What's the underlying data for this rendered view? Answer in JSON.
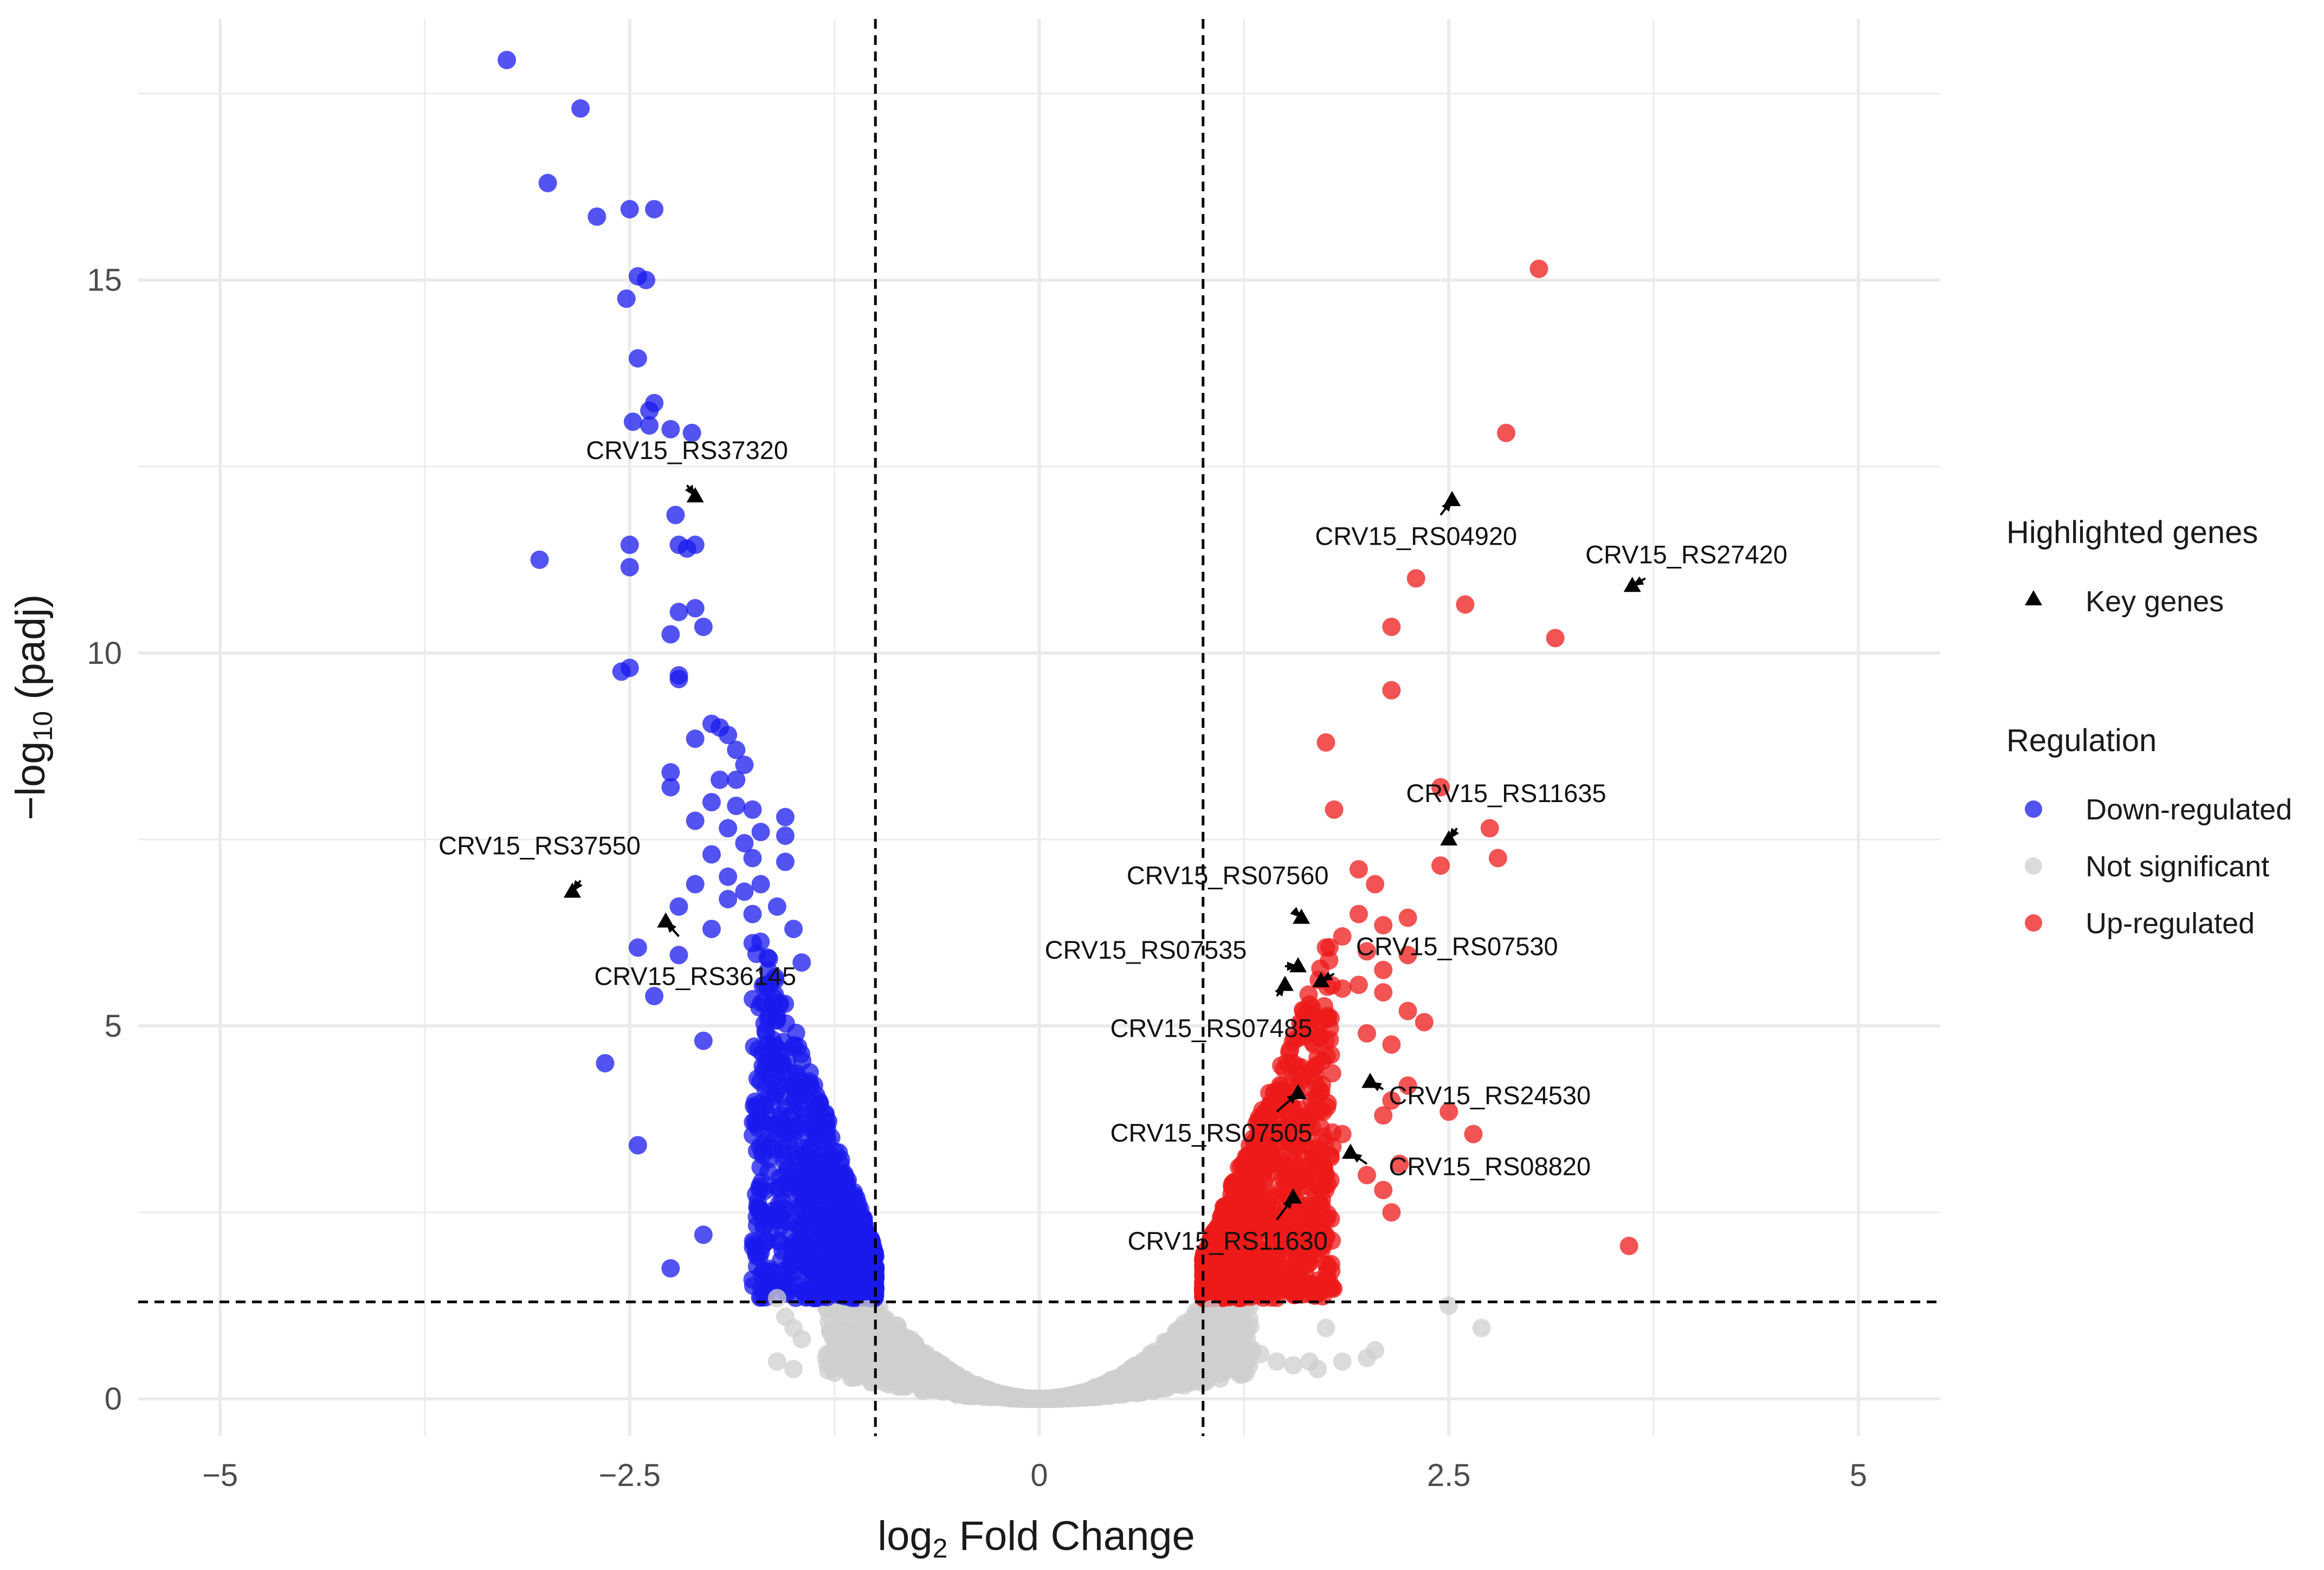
{
  "chart_data": {
    "type": "scatter",
    "subtype": "volcano",
    "title": "",
    "xlabel_base": "log",
    "xlabel_sub": "2",
    "xlabel_rest": " Fold Change",
    "ylabel_base": "−log",
    "ylabel_sub": "10",
    "ylabel_rest": " (padj)",
    "xlim": [
      -5.5,
      5.5
    ],
    "ylim": [
      -0.5,
      18.5
    ],
    "x_ticks": [
      -5,
      -2.5,
      0,
      2.5,
      5
    ],
    "x_tick_labels": [
      "−5",
      "−2.5",
      "0",
      "2.5",
      "5"
    ],
    "y_ticks": [
      0,
      5,
      10,
      15
    ],
    "y_tick_labels": [
      "0",
      "5",
      "10",
      "15"
    ],
    "thresholds": {
      "log2fc": [
        -1,
        1
      ],
      "neg_log10_padj": 1.3
    },
    "colors": {
      "down": "#1a1aee",
      "up": "#ee1a1a",
      "ns": "#cfcfcf",
      "key": "#000000",
      "grid": "#ebebeb",
      "threshold": "#000000"
    },
    "series": [
      {
        "name": "Down-regulated",
        "color": "#1a1aee",
        "points": [
          [
            -3.25,
            17.95
          ],
          [
            -2.8,
            17.3
          ],
          [
            -3.0,
            16.3
          ],
          [
            -2.7,
            15.85
          ],
          [
            -2.5,
            15.95
          ],
          [
            -2.35,
            15.95
          ],
          [
            -2.45,
            15.05
          ],
          [
            -2.4,
            15.0
          ],
          [
            -2.52,
            14.75
          ],
          [
            -2.45,
            13.95
          ],
          [
            -2.35,
            13.35
          ],
          [
            -2.38,
            13.25
          ],
          [
            -2.48,
            13.1
          ],
          [
            -2.38,
            13.05
          ],
          [
            -2.25,
            13.0
          ],
          [
            -2.12,
            12.95
          ],
          [
            -2.22,
            11.85
          ],
          [
            -2.2,
            11.45
          ],
          [
            -2.15,
            11.4
          ],
          [
            -2.1,
            11.45
          ],
          [
            -2.5,
            11.45
          ],
          [
            -3.05,
            11.25
          ],
          [
            -2.5,
            11.15
          ],
          [
            -2.2,
            10.55
          ],
          [
            -2.1,
            10.6
          ],
          [
            -2.05,
            10.35
          ],
          [
            -2.25,
            10.25
          ],
          [
            -2.55,
            9.75
          ],
          [
            -2.5,
            9.8
          ],
          [
            -2.2,
            9.65
          ],
          [
            -2.2,
            9.7
          ],
          [
            -2.0,
            9.05
          ],
          [
            -1.95,
            9.0
          ],
          [
            -1.9,
            8.9
          ],
          [
            -2.1,
            8.85
          ],
          [
            -1.85,
            8.7
          ],
          [
            -1.8,
            8.5
          ],
          [
            -2.25,
            8.4
          ],
          [
            -1.95,
            8.3
          ],
          [
            -1.85,
            8.3
          ],
          [
            -2.25,
            8.2
          ],
          [
            -2.0,
            8.0
          ],
          [
            -1.85,
            7.95
          ],
          [
            -1.75,
            7.9
          ],
          [
            -1.55,
            7.8
          ],
          [
            -2.1,
            7.75
          ],
          [
            -1.9,
            7.65
          ],
          [
            -1.7,
            7.6
          ],
          [
            -1.55,
            7.55
          ],
          [
            -1.8,
            7.45
          ],
          [
            -2.0,
            7.3
          ],
          [
            -1.75,
            7.25
          ],
          [
            -1.55,
            7.2
          ],
          [
            -1.9,
            7.0
          ],
          [
            -2.1,
            6.9
          ],
          [
            -1.7,
            6.9
          ],
          [
            -1.8,
            6.8
          ],
          [
            -1.9,
            6.7
          ],
          [
            -2.2,
            6.6
          ],
          [
            -1.6,
            6.6
          ],
          [
            -1.75,
            6.5
          ],
          [
            -2.0,
            6.3
          ],
          [
            -1.5,
            6.3
          ],
          [
            -2.45,
            6.05
          ],
          [
            -2.2,
            5.95
          ],
          [
            -1.65,
            5.9
          ],
          [
            -1.45,
            5.85
          ],
          [
            -2.35,
            5.4
          ],
          [
            -2.05,
            4.8
          ],
          [
            -2.65,
            4.5
          ],
          [
            -2.45,
            3.4
          ],
          [
            -2.05,
            2.2
          ],
          [
            -2.25,
            1.75
          ],
          [
            -1.75,
            1.6
          ]
        ]
      },
      {
        "name": "Not significant",
        "color": "#cfcfcf",
        "points": [
          [
            -1.6,
            1.35
          ],
          [
            -1.55,
            1.1
          ],
          [
            -1.5,
            0.95
          ],
          [
            -1.45,
            0.8
          ],
          [
            -1.6,
            0.5
          ],
          [
            -1.5,
            0.4
          ],
          [
            -1.3,
            0.55
          ],
          [
            -1.25,
            0.35
          ],
          [
            -1.1,
            0.5
          ],
          [
            -1.0,
            0.9
          ],
          [
            -0.9,
            0.6
          ],
          [
            -0.8,
            0.45
          ],
          [
            -0.7,
            0.35
          ],
          [
            -1.2,
            1.1
          ],
          [
            -1.15,
            0.8
          ],
          [
            -1.05,
            1.2
          ],
          [
            1.05,
            1.2
          ],
          [
            1.15,
            0.9
          ],
          [
            1.25,
            1.05
          ],
          [
            1.35,
            0.6
          ],
          [
            1.45,
            0.5
          ],
          [
            1.55,
            0.45
          ],
          [
            1.65,
            0.5
          ],
          [
            1.7,
            0.4
          ],
          [
            1.75,
            0.95
          ],
          [
            1.2,
            0.5
          ],
          [
            1.1,
            0.75
          ],
          [
            2.5,
            1.25
          ],
          [
            2.7,
            0.95
          ],
          [
            2.05,
            0.65
          ],
          [
            2.0,
            0.55
          ],
          [
            1.85,
            0.5
          ]
        ]
      },
      {
        "name": "Up-regulated",
        "color": "#ee1a1a",
        "points": [
          [
            3.05,
            15.15
          ],
          [
            2.85,
            12.95
          ],
          [
            2.3,
            11.0
          ],
          [
            2.6,
            10.65
          ],
          [
            3.15,
            10.2
          ],
          [
            2.15,
            10.35
          ],
          [
            2.15,
            9.5
          ],
          [
            1.75,
            8.8
          ],
          [
            2.45,
            8.2
          ],
          [
            1.8,
            7.9
          ],
          [
            2.75,
            7.65
          ],
          [
            2.8,
            7.25
          ],
          [
            2.45,
            7.15
          ],
          [
            1.95,
            7.1
          ],
          [
            2.05,
            6.9
          ],
          [
            1.95,
            6.5
          ],
          [
            2.25,
            6.45
          ],
          [
            2.1,
            6.35
          ],
          [
            1.85,
            6.2
          ],
          [
            1.75,
            6.05
          ],
          [
            2.0,
            6.0
          ],
          [
            2.25,
            5.95
          ],
          [
            2.1,
            5.75
          ],
          [
            1.95,
            5.55
          ],
          [
            1.85,
            5.5
          ],
          [
            2.1,
            5.45
          ],
          [
            2.25,
            5.2
          ],
          [
            2.35,
            5.05
          ],
          [
            2.0,
            4.9
          ],
          [
            2.15,
            4.75
          ],
          [
            2.25,
            4.2
          ],
          [
            2.15,
            4.0
          ],
          [
            2.1,
            3.8
          ],
          [
            2.5,
            3.85
          ],
          [
            2.65,
            3.55
          ],
          [
            1.85,
            3.55
          ],
          [
            2.0,
            3.0
          ],
          [
            2.2,
            3.15
          ],
          [
            2.1,
            2.8
          ],
          [
            2.15,
            2.5
          ],
          [
            1.75,
            3.0
          ],
          [
            1.6,
            2.6
          ],
          [
            1.55,
            2.3
          ],
          [
            1.45,
            1.9
          ],
          [
            1.55,
            1.7
          ],
          [
            3.6,
            2.05
          ]
        ]
      }
    ],
    "background_ranges": [
      {
        "name": "Not significant",
        "color": "#cfcfcf",
        "x_span": [
          -1.35,
          1.35
        ],
        "comment": "dense cloud y = 0.18*x^2*... near origin"
      },
      {
        "name": "Down-regulated",
        "color": "#1a1aee",
        "x_span": [
          -1.75,
          -1.0
        ],
        "y_span": [
          1.3,
          6.0
        ]
      },
      {
        "name": "Up-regulated",
        "color": "#ee1a1a",
        "x_span": [
          1.0,
          1.75
        ],
        "y_span": [
          1.3,
          5.8
        ]
      }
    ],
    "key_genes": [
      {
        "label": "CRV15_RS37320",
        "x": -2.1,
        "y": 12.1,
        "label_x": -2.15,
        "label_y": 12.6,
        "arrow_end_x": -2.15,
        "arrow_end_y": 12.25
      },
      {
        "label": "CRV15_RS37550",
        "x": -2.85,
        "y": 6.8,
        "label_x": -3.05,
        "label_y": 7.3,
        "arrow_end_x": -2.8,
        "arrow_end_y": 6.95
      },
      {
        "label": "CRV15_RS36145",
        "x": -2.28,
        "y": 6.4,
        "label_x": -2.1,
        "label_y": 5.55,
        "arrow_end_x": -2.2,
        "arrow_end_y": 6.2
      },
      {
        "label": "CRV15_RS04920",
        "x": 2.52,
        "y": 12.05,
        "label_x": 2.3,
        "label_y": 11.45,
        "arrow_end_x": 2.45,
        "arrow_end_y": 11.85
      },
      {
        "label": "CRV15_RS27420",
        "x": 3.62,
        "y": 10.9,
        "label_x": 3.95,
        "label_y": 11.2,
        "arrow_end_x": 3.7,
        "arrow_end_y": 11.0
      },
      {
        "label": "CRV15_RS11635",
        "x": 2.5,
        "y": 7.5,
        "label_x": 2.85,
        "label_y": 8.0,
        "arrow_end_x": 2.55,
        "arrow_end_y": 7.65
      },
      {
        "label": "CRV15_RS07560",
        "x": 1.6,
        "y": 6.45,
        "label_x": 1.15,
        "label_y": 6.9,
        "arrow_end_x": 1.55,
        "arrow_end_y": 6.55
      },
      {
        "label": "CRV15_RS07535",
        "x": 1.58,
        "y": 5.8,
        "label_x": 0.65,
        "label_y": 5.9,
        "arrow_end_x": 1.5,
        "arrow_end_y": 5.8
      },
      {
        "label": "CRV15_RS07530",
        "x": 1.72,
        "y": 5.6,
        "label_x": 2.55,
        "label_y": 5.95,
        "arrow_end_x": 1.8,
        "arrow_end_y": 5.7
      },
      {
        "label": "CRV15_RS07485",
        "x": 1.5,
        "y": 5.55,
        "label_x": 1.05,
        "label_y": 4.85,
        "arrow_end_x": 1.45,
        "arrow_end_y": 5.4
      },
      {
        "label": "CRV15_RS24530",
        "x": 2.02,
        "y": 4.25,
        "label_x": 2.75,
        "label_y": 3.95,
        "arrow_end_x": 2.1,
        "arrow_end_y": 4.15
      },
      {
        "label": "CRV15_RS07505",
        "x": 1.58,
        "y": 4.1,
        "label_x": 1.05,
        "label_y": 3.45,
        "arrow_end_x": 1.45,
        "arrow_end_y": 3.85
      },
      {
        "label": "CRV15_RS08820",
        "x": 1.9,
        "y": 3.3,
        "label_x": 2.75,
        "label_y": 3.0,
        "arrow_end_x": 2.0,
        "arrow_end_y": 3.15
      },
      {
        "label": "CRV15_RS11630",
        "x": 1.55,
        "y": 2.7,
        "label_x": 1.15,
        "label_y": 2.0,
        "arrow_end_x": 1.45,
        "arrow_end_y": 2.4
      }
    ],
    "legend": {
      "position": "right",
      "highlight_title": "Highlighted genes",
      "highlight_item": "Key genes",
      "regulation_title": "Regulation",
      "regulation_items": [
        {
          "label": "Down-regulated",
          "color": "#1a1aee"
        },
        {
          "label": "Not significant",
          "color": "#cfcfcf"
        },
        {
          "label": "Up-regulated",
          "color": "#ee1a1a"
        }
      ]
    }
  }
}
